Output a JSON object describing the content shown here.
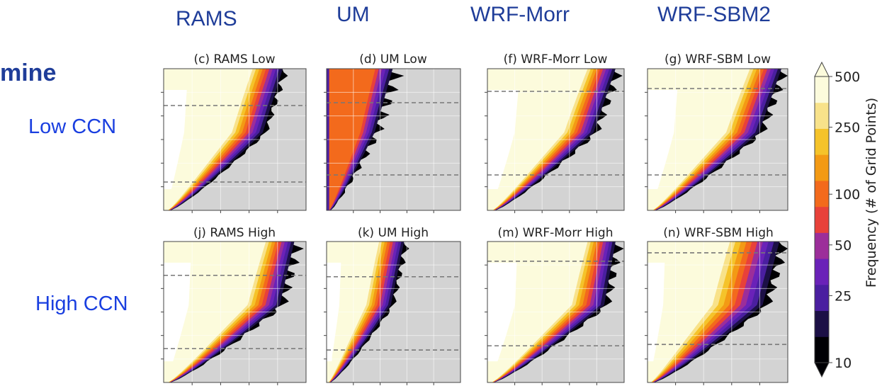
{
  "partial_word": "mine",
  "columns": [
    "RAMS",
    "UM",
    "WRF-Morr",
    "WRF-SBM2"
  ],
  "rows": [
    "Low CCN",
    "High CCN"
  ],
  "chart_data": {
    "type": "heatmap",
    "panels": [
      {
        "title": "(c) RAMS Low",
        "model": "RAMS",
        "ccn": "Low"
      },
      {
        "title": "(d) UM Low",
        "model": "UM",
        "ccn": "Low"
      },
      {
        "title": "(f) WRF-Morr Low",
        "model": "WRF-Morr",
        "ccn": "Low"
      },
      {
        "title": "(g) WRF-SBM Low",
        "model": "WRF-SBM",
        "ccn": "Low"
      },
      {
        "title": "(j) RAMS High",
        "model": "RAMS",
        "ccn": "High"
      },
      {
        "title": "(k) UM High",
        "model": "UM",
        "ccn": "High"
      },
      {
        "title": "(m) WRF-Morr High",
        "model": "WRF-Morr",
        "ccn": "High"
      },
      {
        "title": "(n) WRF-SBM High",
        "model": "WRF-SBM",
        "ccn": "High"
      }
    ],
    "colorbar": {
      "label": "Frequency (# of Grid Points)",
      "tick_labels": [
        "10",
        "25",
        "50",
        "100",
        "250",
        "500"
      ],
      "levels": [
        10,
        18,
        25,
        35,
        50,
        75,
        100,
        175,
        250,
        375,
        500
      ],
      "colors": [
        "#000004",
        "#1c1046",
        "#4a1fa0",
        "#6a22b8",
        "#9c2e9a",
        "#e8413a",
        "#f36a1c",
        "#f39a14",
        "#f5c32a",
        "#f8e28a",
        "#fcfbdc"
      ],
      "extend": "both"
    }
  }
}
